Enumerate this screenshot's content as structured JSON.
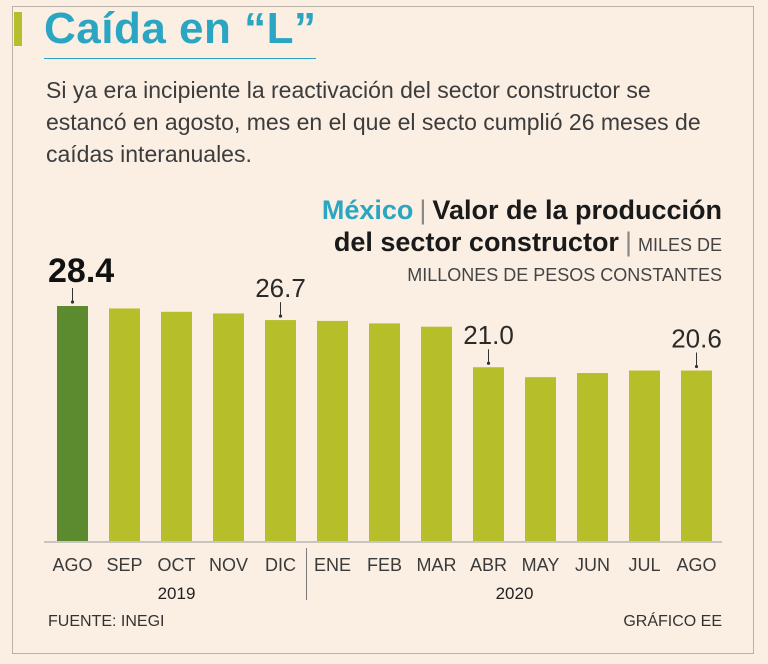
{
  "header": {
    "title": "Caída en “L”",
    "subtitle": "Si ya era incipiente la reactivación del sector constructor se estancó en agosto, mes en el que el secto cumplió 26 meses de caídas interanuales."
  },
  "chart_header": {
    "country": "México",
    "title_line1": "Valor de la producción",
    "title_line2": "del sector constructor",
    "units_line1": "MILES DE",
    "units_line2": "MILLONES DE PESOS CONSTANTES"
  },
  "colors": {
    "highlight_bar": "#5c8a2e",
    "bar": "#b6be2a",
    "accent": "#2ba6c2",
    "background": "#fbefe3"
  },
  "chart_data": {
    "type": "bar",
    "title": "Valor de la producción del sector constructor",
    "ylabel": "Miles de millones de pesos constantes",
    "categories": [
      "AGO",
      "SEP",
      "OCT",
      "NOV",
      "DIC",
      "ENE",
      "FEB",
      "MAR",
      "ABR",
      "MAY",
      "JUN",
      "JUL",
      "AGO"
    ],
    "years": [
      {
        "label": "2019",
        "start": 0,
        "end": 4
      },
      {
        "label": "2020",
        "start": 5,
        "end": 12
      }
    ],
    "values": [
      28.4,
      28.1,
      27.7,
      27.5,
      26.7,
      26.6,
      26.3,
      25.9,
      21.0,
      19.8,
      20.3,
      20.6,
      20.6
    ],
    "labeled": [
      {
        "index": 0,
        "label": "28.4",
        "highlight": true
      },
      {
        "index": 4,
        "label": "26.7"
      },
      {
        "index": 8,
        "label": "21.0"
      },
      {
        "index": 12,
        "label": "20.6"
      }
    ],
    "ylim": [
      0,
      28.4
    ],
    "grid": false
  },
  "footer": {
    "source": "FUENTE: INEGI",
    "credit": "GRÁFICO EE"
  }
}
